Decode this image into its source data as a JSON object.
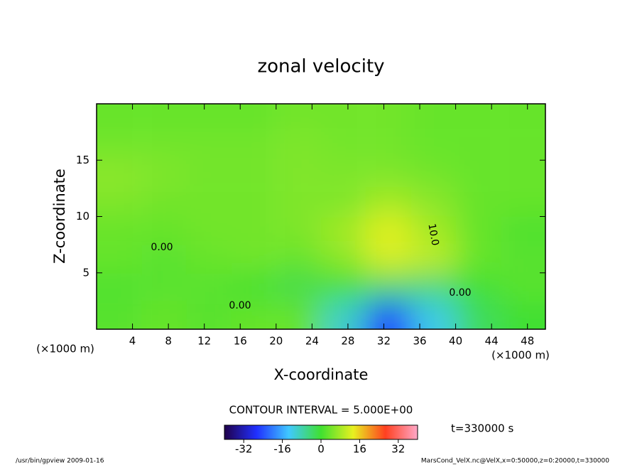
{
  "chart_data": {
    "type": "contour",
    "title": "zonal velocity",
    "x_label": "X-coordinate",
    "y_label": "Z-coordinate",
    "x_unit": "(×1000 m)",
    "xlim": [
      0,
      50
    ],
    "ylim": [
      0,
      20
    ],
    "xticks": [
      4,
      8,
      12,
      16,
      20,
      24,
      28,
      32,
      36,
      40,
      44,
      48
    ],
    "yticks": [
      5,
      10,
      15
    ],
    "x": [
      2.5,
      7.5,
      12.5,
      17.5,
      22.5,
      27.5,
      32.5,
      37.5,
      42.5,
      47.5
    ],
    "y": [
      1.25,
      3.75,
      6.25,
      8.75,
      11.25,
      13.75,
      16.25,
      18.75
    ],
    "z": [
      [
        2,
        3,
        2,
        3,
        3,
        -10,
        -25,
        -12,
        -3,
        0
      ],
      [
        1,
        2,
        2,
        0,
        -2,
        0,
        -3,
        -4,
        0,
        2
      ],
      [
        3,
        2,
        3,
        4,
        3,
        6,
        12,
        10,
        3,
        2
      ],
      [
        3,
        3,
        4,
        4,
        5,
        8,
        13,
        8,
        3,
        1
      ],
      [
        5,
        4,
        4,
        4,
        5,
        5,
        8,
        6,
        3,
        3
      ],
      [
        6,
        5,
        4,
        4,
        5,
        5,
        5,
        4,
        3,
        3
      ],
      [
        4,
        4,
        4,
        4,
        5,
        4,
        4,
        3,
        3,
        3
      ],
      [
        3,
        3,
        3,
        3,
        4,
        4,
        4,
        3,
        3,
        3
      ]
    ],
    "clim": [
      -40,
      40
    ],
    "colorscale": [
      "#20004a",
      "#2030ff",
      "#40c8ff",
      "#40e030",
      "#e8f020",
      "#ff4020",
      "#ffa8c8"
    ],
    "cticks": [
      -32,
      -16,
      0,
      16,
      32
    ],
    "contour_interval": "CONTOUR INTERVAL = 5.000E+00",
    "time": "t=330000 s",
    "annotations": [
      "0.00",
      "0.00",
      "0.00",
      "10.0"
    ],
    "footer_left": "/usr/bin/gpview  2009-01-16",
    "footer_right": "MarsCond_VelX.nc@VelX,x=0:50000,z=0:20000,t=330000"
  }
}
